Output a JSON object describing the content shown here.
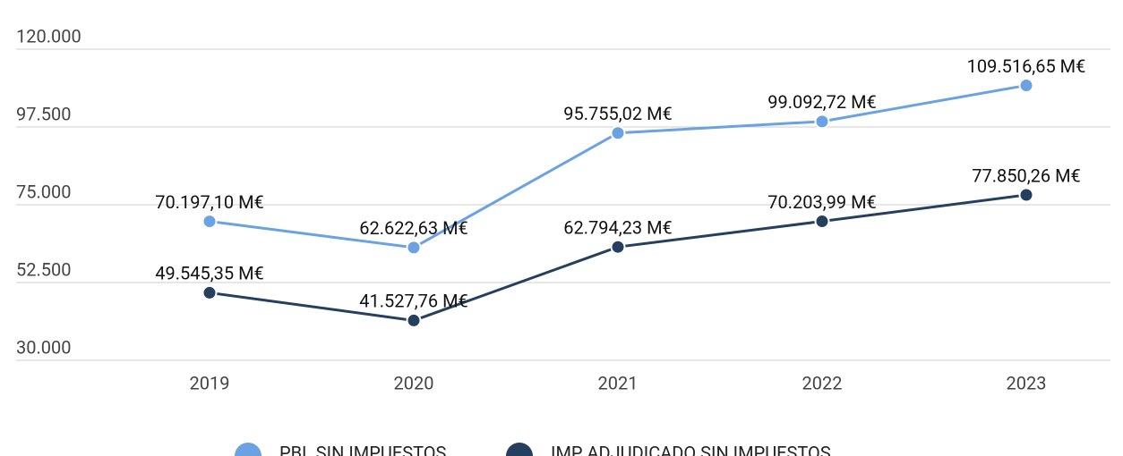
{
  "chart_data": {
    "type": "line",
    "categories": [
      "2019",
      "2020",
      "2021",
      "2022",
      "2023"
    ],
    "series": [
      {
        "name": "PBL SIN IMPUESTOS",
        "color": "#6aa2e3",
        "values": [
          70197.1,
          62622.63,
          95755.02,
          99092.72,
          109516.65
        ],
        "value_labels": [
          "70.197,10 M€",
          "62.622,63 M€",
          "95.755,02 M€",
          "99.092,72 M€",
          "109.516,65 M€"
        ]
      },
      {
        "name": "IMP ADJUDICADO SIN IMPUESTOS",
        "color": "#253f5f",
        "values": [
          49545.35,
          41527.76,
          62794.23,
          70203.99,
          77850.26
        ],
        "value_labels": [
          "49.545,35 M€",
          "41.527,76 M€",
          "62.794,23 M€",
          "70.203,99 M€",
          "77.850,26 M€"
        ]
      }
    ],
    "ylim": [
      30000,
      120000
    ],
    "yticks": [
      {
        "value": 30000,
        "label": "30.000"
      },
      {
        "value": 52500,
        "label": "52.500"
      },
      {
        "value": 75000,
        "label": "75.000"
      },
      {
        "value": 97500,
        "label": "97.500"
      },
      {
        "value": 120000,
        "label": "120.000"
      }
    ],
    "grid": true,
    "legend": "bottom"
  }
}
